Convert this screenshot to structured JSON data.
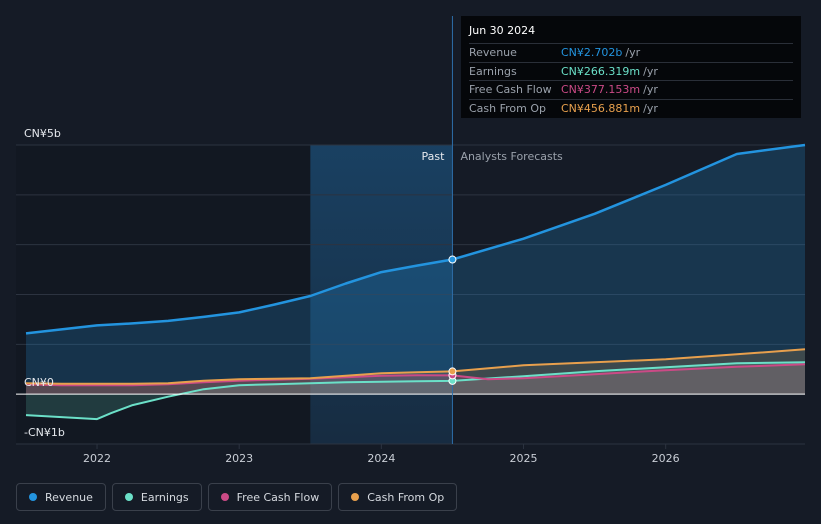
{
  "colors": {
    "background": "#151b26",
    "revenue": "#2394df",
    "earnings": "#6be0c8",
    "free_cash_flow": "#cb4a86",
    "cash_from_op": "#e8a04d",
    "grid": "#2c3340",
    "zero_line": "#ffffff"
  },
  "tooltip": {
    "date": "Jun 30 2024",
    "rows": [
      {
        "label": "Revenue",
        "value": "CN¥2.702b",
        "unit": "/yr",
        "color": "#2394df"
      },
      {
        "label": "Earnings",
        "value": "CN¥266.319m",
        "unit": "/yr",
        "color": "#6be0c8"
      },
      {
        "label": "Free Cash Flow",
        "value": "CN¥377.153m",
        "unit": "/yr",
        "color": "#cb4a86"
      },
      {
        "label": "Cash From Op",
        "value": "CN¥456.881m",
        "unit": "/yr",
        "color": "#e8a04d"
      }
    ]
  },
  "legend": [
    {
      "label": "Revenue",
      "color": "#2394df"
    },
    {
      "label": "Earnings",
      "color": "#6be0c8"
    },
    {
      "label": "Free Cash Flow",
      "color": "#cb4a86"
    },
    {
      "label": "Cash From Op",
      "color": "#e8a04d"
    }
  ],
  "chart_data": {
    "type": "line",
    "title": "",
    "unit": "CN¥ billions",
    "xlim": [
      2021.43,
      2026.98
    ],
    "ylim": [
      -1,
      5
    ],
    "y_tick_labels": [
      {
        "value": 5,
        "label": "CN¥5b"
      },
      {
        "value": 0,
        "label": "CN¥0"
      },
      {
        "value": -1,
        "label": "-CN¥1b"
      }
    ],
    "x_ticks": [
      2022,
      2023,
      2024,
      2025,
      2026
    ],
    "x_tick_labels": [
      "2022",
      "2023",
      "2024",
      "2025",
      "2026"
    ],
    "past_region": [
      2023.5,
      2024.5
    ],
    "divider_x": 2024.5,
    "past_label": "Past",
    "forecast_label": "Analysts Forecasts",
    "highlight_x": 2024.5,
    "series": [
      {
        "name": "Revenue",
        "color": "#2394df",
        "fill": true,
        "points": [
          [
            2021.5,
            1.22
          ],
          [
            2021.75,
            1.3
          ],
          [
            2022.0,
            1.38
          ],
          [
            2022.25,
            1.42
          ],
          [
            2022.5,
            1.47
          ],
          [
            2022.75,
            1.55
          ],
          [
            2023.0,
            1.64
          ],
          [
            2023.25,
            1.8
          ],
          [
            2023.5,
            1.97
          ],
          [
            2023.75,
            2.22
          ],
          [
            2024.0,
            2.45
          ],
          [
            2024.25,
            2.58
          ],
          [
            2024.5,
            2.702
          ],
          [
            2025.0,
            3.12
          ],
          [
            2025.5,
            3.62
          ],
          [
            2026.0,
            4.2
          ],
          [
            2026.5,
            4.82
          ],
          [
            2026.98,
            5.0
          ]
        ]
      },
      {
        "name": "Earnings",
        "color": "#6be0c8",
        "fill": true,
        "points": [
          [
            2021.5,
            -0.42
          ],
          [
            2021.75,
            -0.46
          ],
          [
            2022.0,
            -0.5
          ],
          [
            2022.1,
            -0.38
          ],
          [
            2022.25,
            -0.22
          ],
          [
            2022.5,
            -0.05
          ],
          [
            2022.75,
            0.1
          ],
          [
            2023.0,
            0.18
          ],
          [
            2023.25,
            0.2
          ],
          [
            2023.5,
            0.22
          ],
          [
            2023.75,
            0.24
          ],
          [
            2024.0,
            0.25
          ],
          [
            2024.25,
            0.26
          ],
          [
            2024.5,
            0.266
          ],
          [
            2025.0,
            0.36
          ],
          [
            2025.5,
            0.46
          ],
          [
            2026.0,
            0.54
          ],
          [
            2026.5,
            0.62
          ],
          [
            2026.98,
            0.64
          ]
        ]
      },
      {
        "name": "Free Cash Flow",
        "color": "#cb4a86",
        "fill": true,
        "points": [
          [
            2021.5,
            0.2
          ],
          [
            2021.75,
            0.18
          ],
          [
            2022.0,
            0.18
          ],
          [
            2022.25,
            0.18
          ],
          [
            2022.5,
            0.2
          ],
          [
            2022.75,
            0.24
          ],
          [
            2023.0,
            0.27
          ],
          [
            2023.25,
            0.29
          ],
          [
            2023.5,
            0.31
          ],
          [
            2023.75,
            0.34
          ],
          [
            2024.0,
            0.37
          ],
          [
            2024.25,
            0.38
          ],
          [
            2024.5,
            0.377
          ],
          [
            2024.75,
            0.3
          ],
          [
            2025.0,
            0.32
          ],
          [
            2025.5,
            0.4
          ],
          [
            2026.0,
            0.48
          ],
          [
            2026.5,
            0.55
          ],
          [
            2026.98,
            0.6
          ]
        ]
      },
      {
        "name": "Cash From Op",
        "color": "#e8a04d",
        "fill": true,
        "points": [
          [
            2021.5,
            0.22
          ],
          [
            2021.75,
            0.21
          ],
          [
            2022.0,
            0.21
          ],
          [
            2022.25,
            0.21
          ],
          [
            2022.5,
            0.22
          ],
          [
            2022.75,
            0.27
          ],
          [
            2023.0,
            0.3
          ],
          [
            2023.25,
            0.31
          ],
          [
            2023.5,
            0.32
          ],
          [
            2023.75,
            0.37
          ],
          [
            2024.0,
            0.42
          ],
          [
            2024.25,
            0.44
          ],
          [
            2024.5,
            0.457
          ],
          [
            2025.0,
            0.58
          ],
          [
            2025.5,
            0.64
          ],
          [
            2026.0,
            0.7
          ],
          [
            2026.5,
            0.8
          ],
          [
            2026.98,
            0.9
          ]
        ]
      }
    ]
  }
}
